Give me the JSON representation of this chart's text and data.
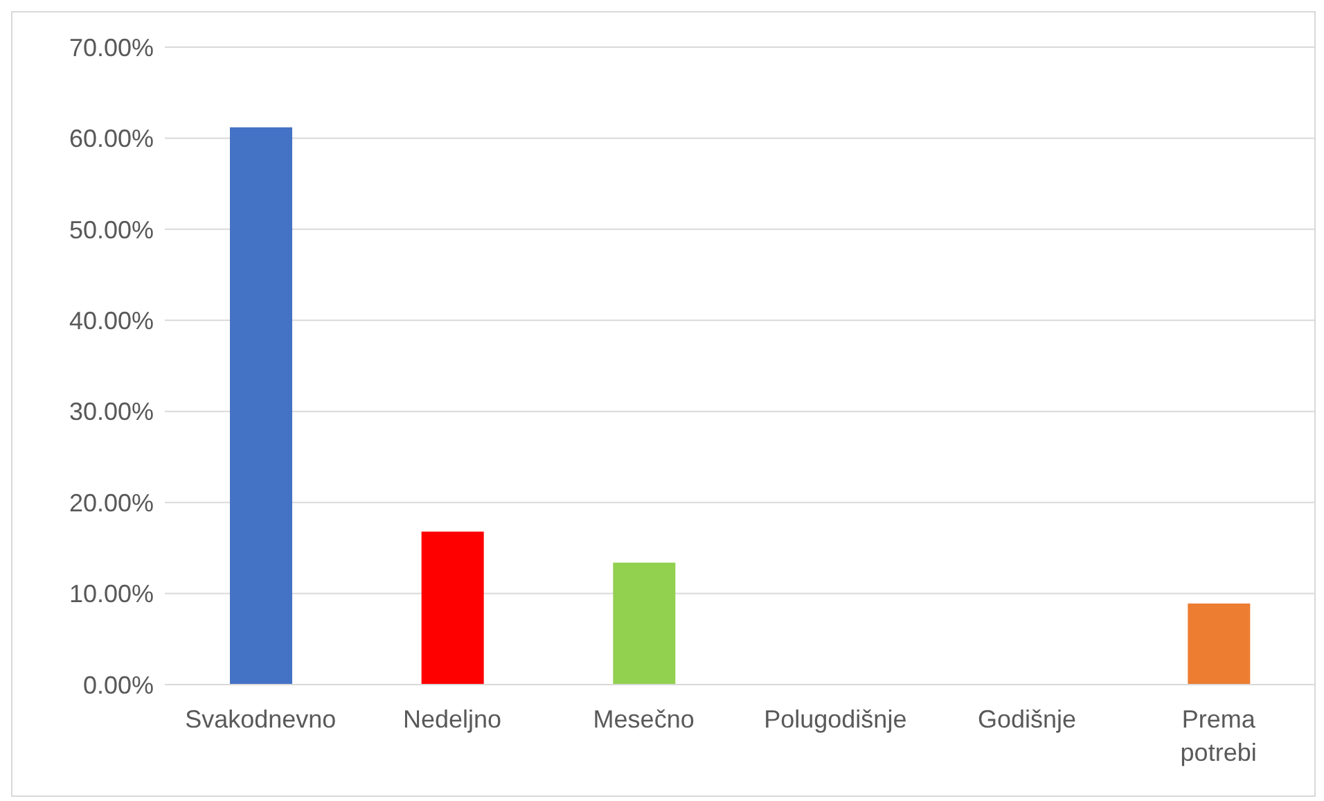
{
  "chart_data": {
    "type": "bar",
    "categories": [
      "Svakodnevno",
      "Nedeljno",
      "Mesečno",
      "Polugodišnje",
      "Godišnje",
      "Prema potrebi"
    ],
    "values": [
      61.2,
      16.8,
      13.4,
      0,
      0,
      8.9
    ],
    "colors": [
      "#4472c4",
      "#ff0000",
      "#92d050",
      null,
      null,
      "#ed7d31"
    ],
    "ylim": [
      0,
      70
    ],
    "yticks": [
      {
        "value": 0,
        "label": "0.00%"
      },
      {
        "value": 10,
        "label": "10.00%"
      },
      {
        "value": 20,
        "label": "20.00%"
      },
      {
        "value": 30,
        "label": "30.00%"
      },
      {
        "value": 40,
        "label": "40.00%"
      },
      {
        "value": 50,
        "label": "50.00%"
      },
      {
        "value": 60,
        "label": "60.00%"
      },
      {
        "value": 70,
        "label": "70.00%"
      }
    ],
    "grid": "y"
  }
}
